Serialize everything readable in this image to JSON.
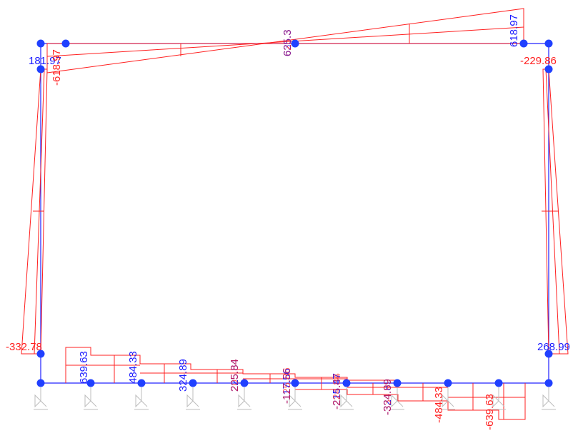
{
  "colors": {
    "frame": "#2020ff",
    "moment": "#ff2020",
    "node": "#2040ff",
    "support": "#bdbdbd",
    "label_positive": "#1a1aff",
    "label_negative": "#ff2020"
  },
  "labels": {
    "top_left_value": "181.97",
    "top_left_neg": "-618.97",
    "top_mid_value": "625.3",
    "top_mid_overlap": "635.3",
    "top_right_value": "618.97",
    "right_top_value": "-229.86",
    "left_bottom_value": "-332.78",
    "right_bottom_value": "268.99",
    "base_values": [
      "639.63",
      "484.33",
      "324.89",
      "225.84",
      "205.84",
      "-117.56",
      "-125.86",
      "-215.47",
      "-224.84",
      "-324.89",
      "-334.99",
      "-484.33",
      "-639.63"
    ]
  },
  "icons": {
    "node": "node-dot-icon",
    "support": "fixed-support-icon"
  }
}
